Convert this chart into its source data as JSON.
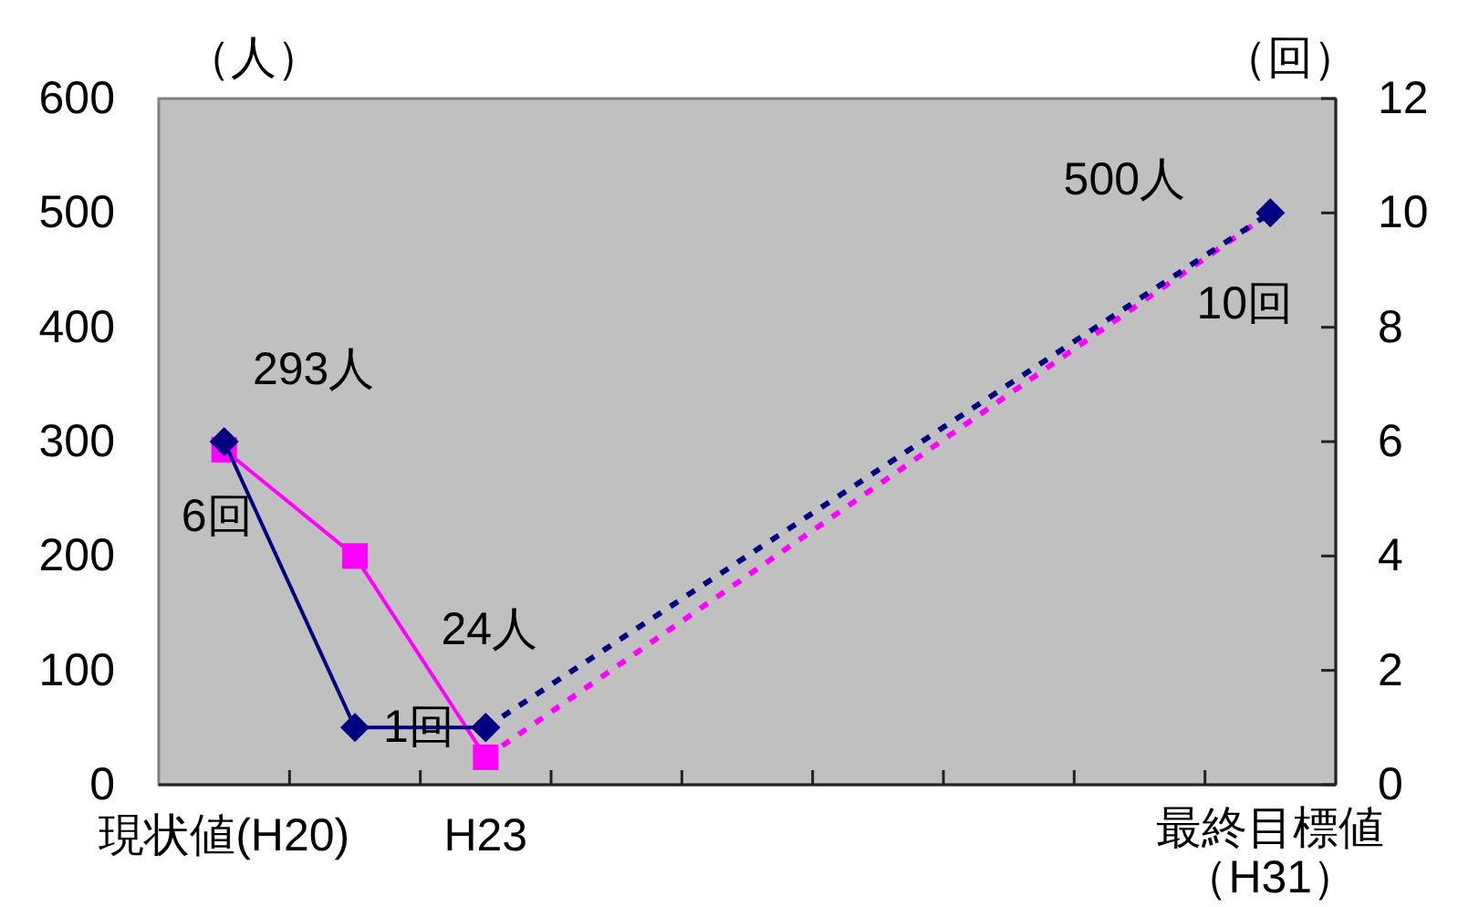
{
  "chart_data": {
    "type": "line",
    "categories": [
      "現状値(H20)",
      null,
      "H23",
      null,
      null,
      null,
      null,
      null,
      "最終目標値（H31）"
    ],
    "ylabel": "（人）",
    "y2label": "（回）",
    "ylim": [
      0,
      600
    ],
    "yticks": [
      0,
      100,
      200,
      300,
      400,
      500,
      600
    ],
    "y2lim": [
      0,
      12
    ],
    "y2ticks": [
      0,
      2,
      4,
      6,
      8,
      10,
      12
    ],
    "series": [
      {
        "color": "#ff00ff",
        "marker": "square",
        "line_style": "solid",
        "values": [
          293,
          200,
          24,
          null,
          null,
          null,
          null,
          null,
          null
        ],
        "value_labels": [
          "293人",
          null,
          "24人",
          null,
          null,
          null,
          null,
          null,
          null
        ]
      },
      {
        "color": "#ff00ff",
        "line_style": "dotted",
        "values": [
          null,
          null,
          24,
          null,
          null,
          null,
          null,
          null,
          500
        ],
        "value_labels": [
          null,
          null,
          null,
          null,
          null,
          null,
          null,
          null,
          "500人"
        ]
      },
      {
        "color": "#000080",
        "marker": "diamond",
        "line_style": "solid",
        "axis": "y2",
        "values": [
          6,
          1,
          1,
          null,
          null,
          null,
          null,
          null,
          null
        ],
        "value_labels": [
          "6回",
          "1回",
          null,
          null,
          null,
          null,
          null,
          null,
          null
        ]
      },
      {
        "color": "#000080",
        "marker": "diamond",
        "line_style": "dotted",
        "axis": "y2",
        "values": [
          null,
          null,
          1,
          null,
          null,
          null,
          null,
          null,
          10
        ],
        "value_labels": [
          null,
          null,
          null,
          null,
          null,
          null,
          null,
          null,
          "10回"
        ]
      }
    ]
  }
}
